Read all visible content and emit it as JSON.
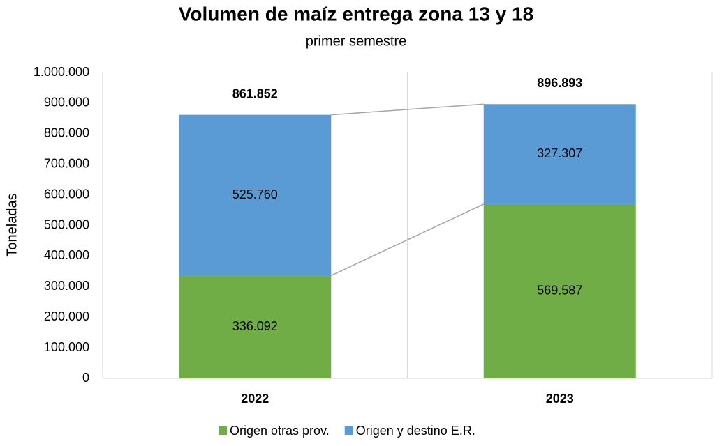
{
  "chart_data": {
    "type": "stacked_bar",
    "title": "Volumen de maíz entrega zona 13 y 18",
    "subtitle": "primer semestre",
    "y_label": "Toneladas",
    "categories": [
      "2022",
      "2023"
    ],
    "series": [
      {
        "name": "Origen otras prov.",
        "color": "#70ad47",
        "values": [
          336092,
          569587
        ],
        "value_labels": [
          "336.092",
          "569.587"
        ]
      },
      {
        "name": "Origen y destino E.R.",
        "color": "#5b9bd5",
        "values": [
          525760,
          327307
        ],
        "value_labels": [
          "525.760",
          "327.307"
        ]
      }
    ],
    "totals": {
      "values": [
        861852,
        896893
      ],
      "value_labels": [
        "861.852",
        "896.893"
      ]
    },
    "ylim": [
      0,
      1000000
    ],
    "yticks": [
      0,
      {
        "value": 100000,
        "label": "100.000"
      },
      {
        "value": 200000,
        "label": "200.000"
      },
      {
        "value": 300000,
        "label": "300.000"
      },
      {
        "value": 400000,
        "label": "400.000"
      },
      {
        "value": 500000,
        "label": "500.000"
      },
      {
        "value": 600000,
        "label": "600.000"
      },
      {
        "value": 700000,
        "label": "700.000"
      },
      {
        "value": 800000,
        "label": "800.000"
      },
      {
        "value": 900000,
        "label": "900.000"
      },
      {
        "value": 1000000,
        "label": "1.000.000"
      }
    ],
    "legend": "bottom",
    "series_lines": true
  }
}
